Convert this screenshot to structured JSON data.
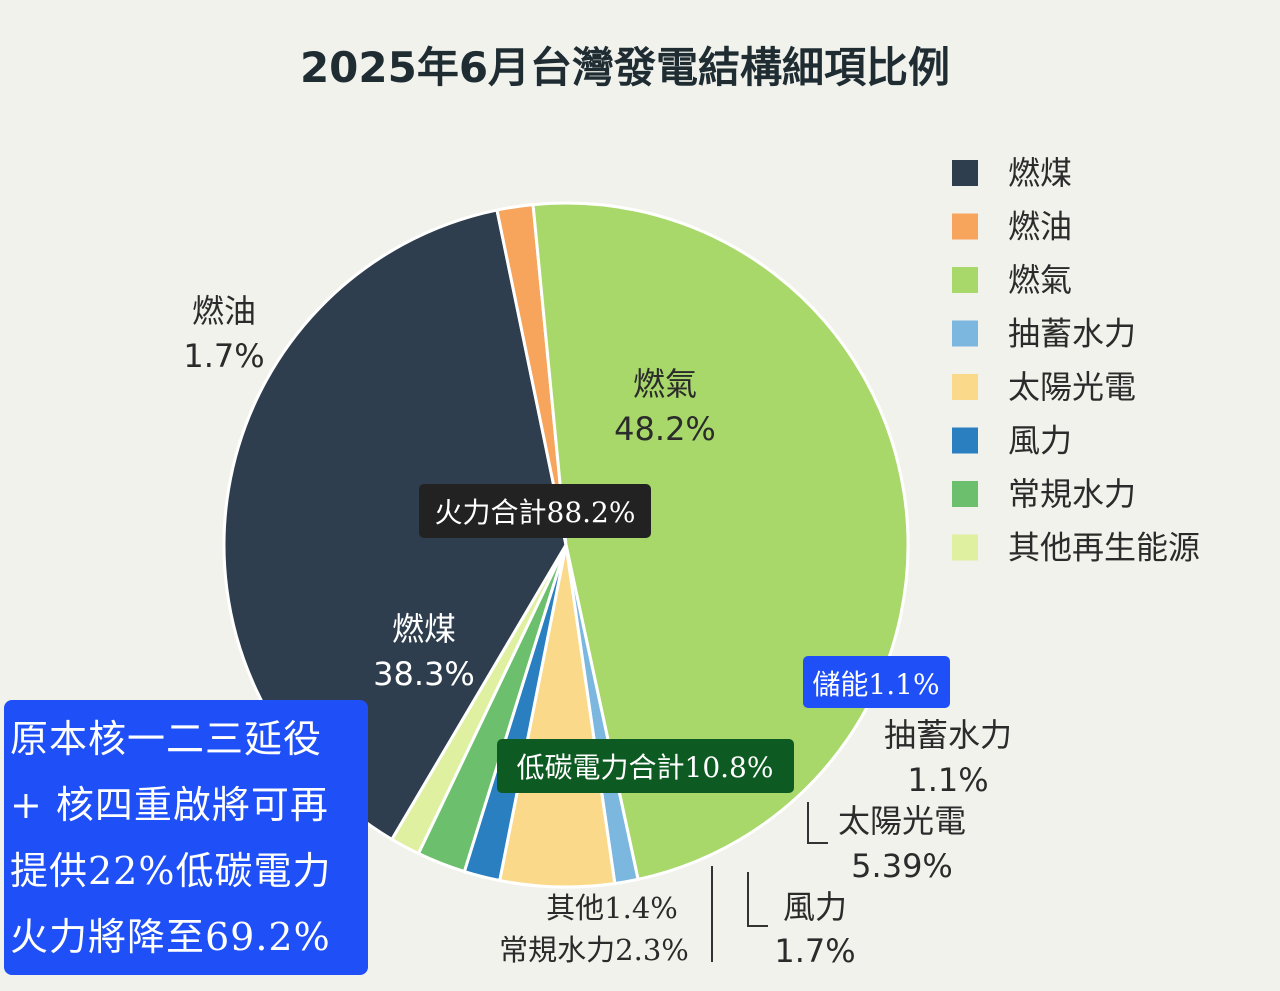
{
  "chart_data": {
    "type": "pie",
    "title": "2025年6月台灣發電結構細項比例",
    "legend_position": "right",
    "slices": [
      {
        "name": "燃煤",
        "value": 38.3,
        "color": "#2e3e4e",
        "label": "燃煤",
        "pct": "38.3%"
      },
      {
        "name": "燃油",
        "value": 1.7,
        "color": "#f7a45c",
        "label": "燃油",
        "pct": "1.7%"
      },
      {
        "name": "燃氣",
        "value": 48.2,
        "color": "#a8d86a",
        "label": "燃氣",
        "pct": "48.2%"
      },
      {
        "name": "抽蓄水力",
        "value": 1.1,
        "color": "#7cb7e0",
        "label": "抽蓄水力",
        "pct": "1.1%"
      },
      {
        "name": "太陽光電",
        "value": 5.39,
        "color": "#fbd98a",
        "label": "太陽光電",
        "pct": "5.39%"
      },
      {
        "name": "風力",
        "value": 1.7,
        "color": "#2a7fc1",
        "label": "風力",
        "pct": "1.7%"
      },
      {
        "name": "常規水力",
        "value": 2.3,
        "color": "#6cbf6c",
        "label": "常規水力2.3%",
        "pct": ""
      },
      {
        "name": "其他再生能源",
        "value": 1.4,
        "color": "#dff0a0",
        "label": "其他1.4%",
        "pct": ""
      }
    ],
    "annotations": {
      "fossil_total": "火力合計88.2%",
      "storage": "儲能1.1%",
      "low_carbon_total": "低碳電力合計10.8%"
    }
  },
  "note_box": {
    "lines": [
      "原本核一二三延役",
      "+ 核四重啟將可再",
      "提供22%低碳電力",
      "火力將降至69.2%"
    ]
  },
  "colors": {
    "background": "#f2f2ed",
    "note_box": "#1f4ff7",
    "fossil_box": "#222222",
    "storage_box": "#1f4ff7",
    "low_carbon_box": "#0d5a22"
  }
}
